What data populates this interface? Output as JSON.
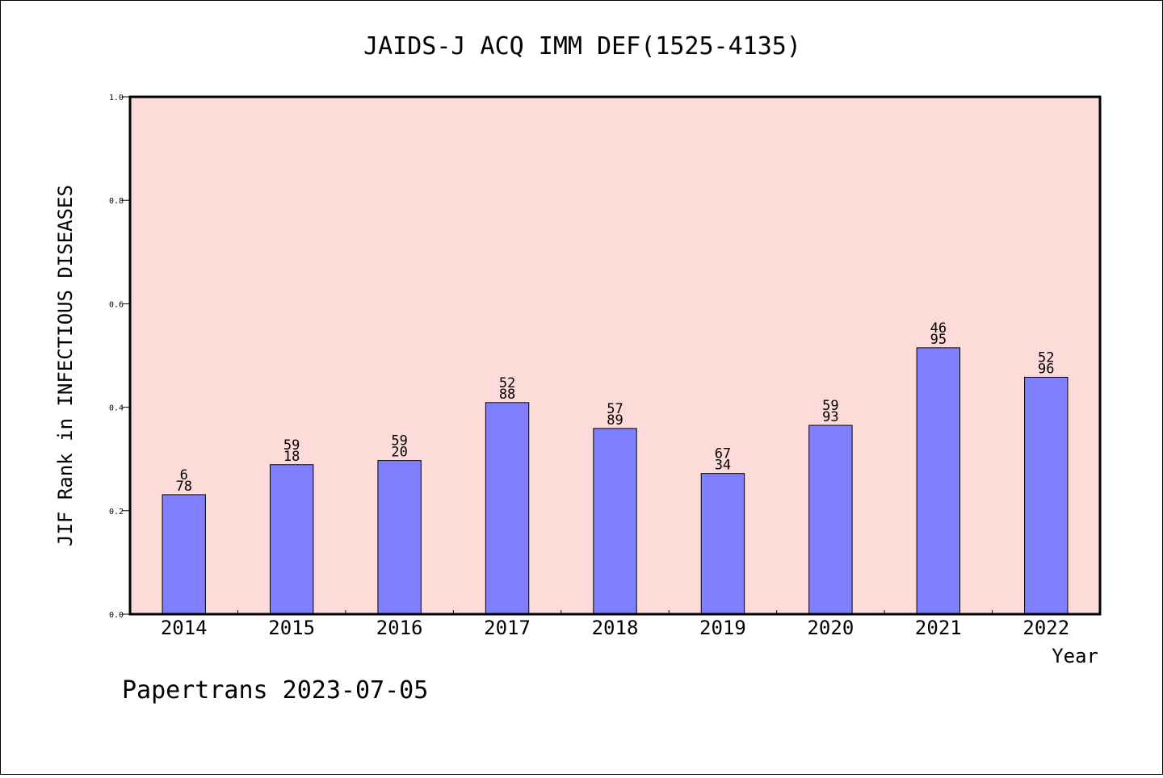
{
  "chart_data": {
    "type": "bar",
    "title": "JAIDS-J ACQ IMM DEF(1525-4135)",
    "xlabel": "Year",
    "ylabel": "JIF Rank in INFECTIOUS DISEASES",
    "ylim": [
      0,
      1
    ],
    "yticks": [
      "0.0",
      "0.2",
      "0.4",
      "0.6",
      "0.8",
      "1.0"
    ],
    "categories": [
      "2014",
      "2015",
      "2016",
      "2017",
      "2018",
      "2019",
      "2020",
      "2021",
      "2022"
    ],
    "values": [
      0.231,
      0.289,
      0.297,
      0.409,
      0.359,
      0.272,
      0.365,
      0.515,
      0.458
    ],
    "labels_top": [
      "6",
      "59",
      "59",
      "52",
      "57",
      "67",
      "59",
      "46",
      "52"
    ],
    "labels_bottom": [
      "78",
      "18",
      "20",
      "88",
      "89",
      "34",
      "93",
      "95",
      "96"
    ],
    "plot_background": "#fddbd8",
    "bar_color": "#8080ff",
    "grid": false
  },
  "footer": "Papertrans 2023-07-05"
}
